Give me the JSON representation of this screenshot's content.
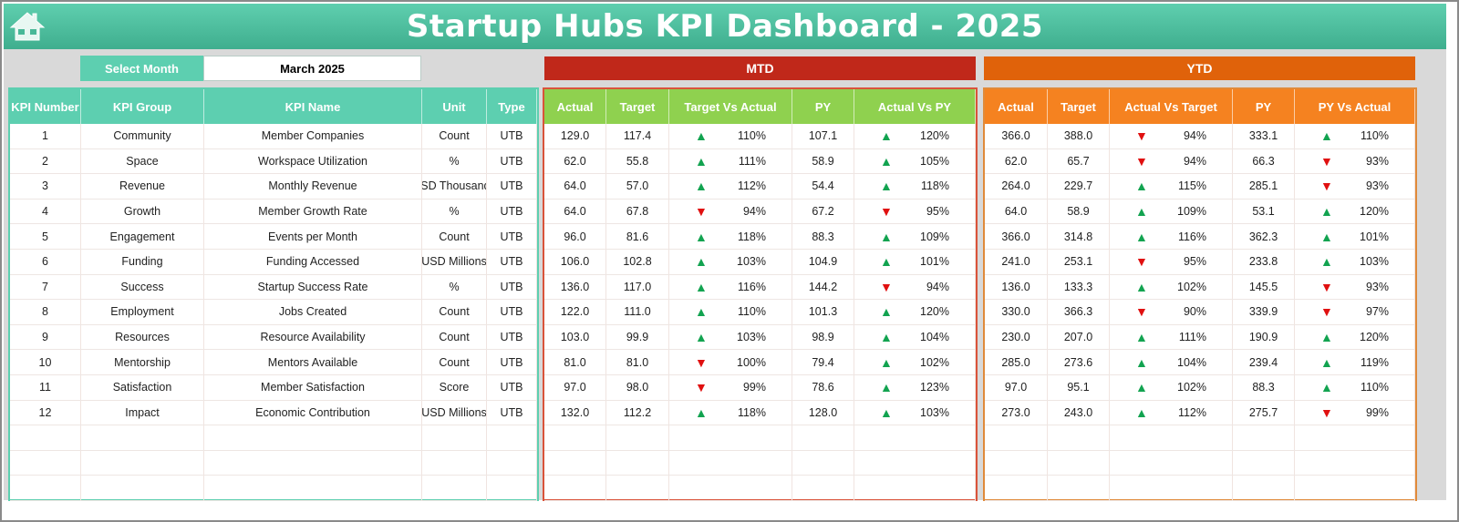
{
  "title": "Startup Hubs KPI Dashboard - 2025",
  "select_month": {
    "label": "Select Month",
    "value": "March 2025"
  },
  "sections": {
    "mtd": "MTD",
    "ytd": "YTD"
  },
  "colors": {
    "title": "#4cbf9f",
    "kpi_header": "#5dcfb0",
    "mtd": "#C0281A",
    "mtd_header": "#8fd14f",
    "ytd": "#E0620A",
    "ytd_header": "#f58220",
    "up": "#12a350",
    "down": "#e01010"
  },
  "kpi_headers": [
    "KPI Number",
    "KPI Group",
    "KPI Name",
    "Unit",
    "Type"
  ],
  "mtd_headers": [
    "Actual",
    "Target",
    "Target Vs Actual",
    "PY",
    "Actual Vs PY"
  ],
  "ytd_headers": [
    "Actual",
    "Target",
    "Actual Vs Target",
    "PY",
    "PY Vs Actual"
  ],
  "rows": [
    {
      "kpi": [
        "1",
        "Community",
        "Member Companies",
        "Count",
        "UTB"
      ],
      "mtd": [
        "129.0",
        "117.4",
        "up",
        "110%",
        "107.1",
        "up",
        "120%"
      ],
      "ytd": [
        "366.0",
        "388.0",
        "down",
        "94%",
        "333.1",
        "up",
        "110%"
      ]
    },
    {
      "kpi": [
        "2",
        "Space",
        "Workspace Utilization",
        "%",
        "UTB"
      ],
      "mtd": [
        "62.0",
        "55.8",
        "up",
        "111%",
        "58.9",
        "up",
        "105%"
      ],
      "ytd": [
        "62.0",
        "65.7",
        "down",
        "94%",
        "66.3",
        "down",
        "93%"
      ]
    },
    {
      "kpi": [
        "3",
        "Revenue",
        "Monthly Revenue",
        "USD Thousands",
        "UTB"
      ],
      "mtd": [
        "64.0",
        "57.0",
        "up",
        "112%",
        "54.4",
        "up",
        "118%"
      ],
      "ytd": [
        "264.0",
        "229.7",
        "up",
        "115%",
        "285.1",
        "down",
        "93%"
      ]
    },
    {
      "kpi": [
        "4",
        "Growth",
        "Member Growth Rate",
        "%",
        "UTB"
      ],
      "mtd": [
        "64.0",
        "67.8",
        "down",
        "94%",
        "67.2",
        "down",
        "95%"
      ],
      "ytd": [
        "64.0",
        "58.9",
        "up",
        "109%",
        "53.1",
        "up",
        "120%"
      ]
    },
    {
      "kpi": [
        "5",
        "Engagement",
        "Events per Month",
        "Count",
        "UTB"
      ],
      "mtd": [
        "96.0",
        "81.6",
        "up",
        "118%",
        "88.3",
        "up",
        "109%"
      ],
      "ytd": [
        "366.0",
        "314.8",
        "up",
        "116%",
        "362.3",
        "up",
        "101%"
      ]
    },
    {
      "kpi": [
        "6",
        "Funding",
        "Funding Accessed",
        "USD Millions",
        "UTB"
      ],
      "mtd": [
        "106.0",
        "102.8",
        "up",
        "103%",
        "104.9",
        "up",
        "101%"
      ],
      "ytd": [
        "241.0",
        "253.1",
        "down",
        "95%",
        "233.8",
        "up",
        "103%"
      ]
    },
    {
      "kpi": [
        "7",
        "Success",
        "Startup Success Rate",
        "%",
        "UTB"
      ],
      "mtd": [
        "136.0",
        "117.0",
        "up",
        "116%",
        "144.2",
        "down",
        "94%"
      ],
      "ytd": [
        "136.0",
        "133.3",
        "up",
        "102%",
        "145.5",
        "down",
        "93%"
      ]
    },
    {
      "kpi": [
        "8",
        "Employment",
        "Jobs Created",
        "Count",
        "UTB"
      ],
      "mtd": [
        "122.0",
        "111.0",
        "up",
        "110%",
        "101.3",
        "up",
        "120%"
      ],
      "ytd": [
        "330.0",
        "366.3",
        "down",
        "90%",
        "339.9",
        "down",
        "97%"
      ]
    },
    {
      "kpi": [
        "9",
        "Resources",
        "Resource Availability",
        "Count",
        "UTB"
      ],
      "mtd": [
        "103.0",
        "99.9",
        "up",
        "103%",
        "98.9",
        "up",
        "104%"
      ],
      "ytd": [
        "230.0",
        "207.0",
        "up",
        "111%",
        "190.9",
        "up",
        "120%"
      ]
    },
    {
      "kpi": [
        "10",
        "Mentorship",
        "Mentors Available",
        "Count",
        "UTB"
      ],
      "mtd": [
        "81.0",
        "81.0",
        "down",
        "100%",
        "79.4",
        "up",
        "102%"
      ],
      "ytd": [
        "285.0",
        "273.6",
        "up",
        "104%",
        "239.4",
        "up",
        "119%"
      ]
    },
    {
      "kpi": [
        "11",
        "Satisfaction",
        "Member Satisfaction",
        "Score",
        "UTB"
      ],
      "mtd": [
        "97.0",
        "98.0",
        "down",
        "99%",
        "78.6",
        "up",
        "123%"
      ],
      "ytd": [
        "97.0",
        "95.1",
        "up",
        "102%",
        "88.3",
        "up",
        "110%"
      ]
    },
    {
      "kpi": [
        "12",
        "Impact",
        "Economic Contribution",
        "USD Millions",
        "UTB"
      ],
      "mtd": [
        "132.0",
        "112.2",
        "up",
        "118%",
        "128.0",
        "up",
        "103%"
      ],
      "ytd": [
        "273.0",
        "243.0",
        "up",
        "112%",
        "275.7",
        "down",
        "99%"
      ]
    }
  ]
}
